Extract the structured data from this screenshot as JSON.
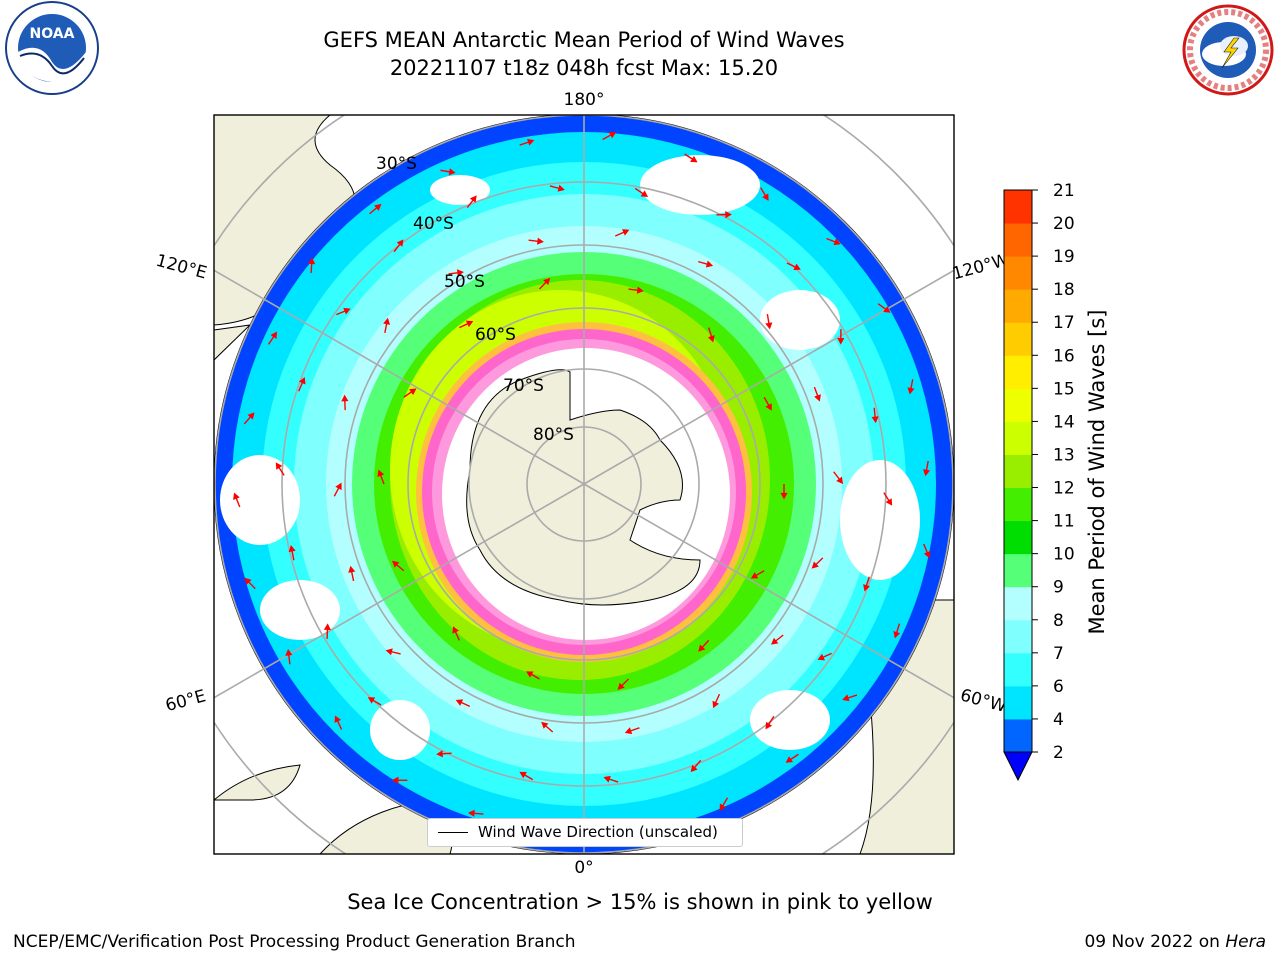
{
  "title_line1": "GEFS MEAN Antarctic Mean Period of Wind Waves",
  "title_line2": "20221107 t18z 048h fcst   Max: 15.20",
  "logos": {
    "left": {
      "icon": "noaa-logo",
      "text": "NOAA",
      "ring_text": "NATIONAL OCEANIC AND ATMOSPHERIC ADMINISTRATION · U.S. DEPARTMENT OF COMMERCE"
    },
    "right": {
      "icon": "nws-logo",
      "ring_text": "NATIONAL WEATHER SERVICE"
    }
  },
  "map": {
    "projection": "south polar stereographic",
    "longitude_labels": {
      "top": "180°",
      "bottom": "0°",
      "upper_left": "120°E",
      "upper_right": "120°W",
      "lower_left": "60°E",
      "lower_right": "60°W"
    },
    "latitude_labels": [
      "30°S",
      "40°S",
      "50°S",
      "60°S",
      "70°S",
      "80°S"
    ]
  },
  "legend": {
    "label": "Wind Wave Direction (unscaled)"
  },
  "colorbar": {
    "label": "Mean Period of Wind Waves [s]",
    "ticks": [
      "2",
      "4",
      "6",
      "7",
      "8",
      "9",
      "10",
      "11",
      "12",
      "13",
      "14",
      "15",
      "16",
      "17",
      "18",
      "19",
      "20",
      "21"
    ],
    "colors": [
      "#0066ff",
      "#00e5ff",
      "#33ffff",
      "#80ffff",
      "#b3ffff",
      "#55ff77",
      "#00dd00",
      "#44ee00",
      "#99ee00",
      "#ccff00",
      "#eeff00",
      "#ffee00",
      "#ffcc00",
      "#ffaa00",
      "#ff8800",
      "#ff6600",
      "#ff3300",
      "#ff0000"
    ],
    "under_color": "#0000ff"
  },
  "subtitle": "Sea Ice Concentration > 15% is shown in pink to yellow",
  "footer_left": "NCEP/EMC/Verification Post Processing Product Generation Branch",
  "footer_right_prefix": "09 Nov 2022 on ",
  "footer_right_host": "Hera"
}
